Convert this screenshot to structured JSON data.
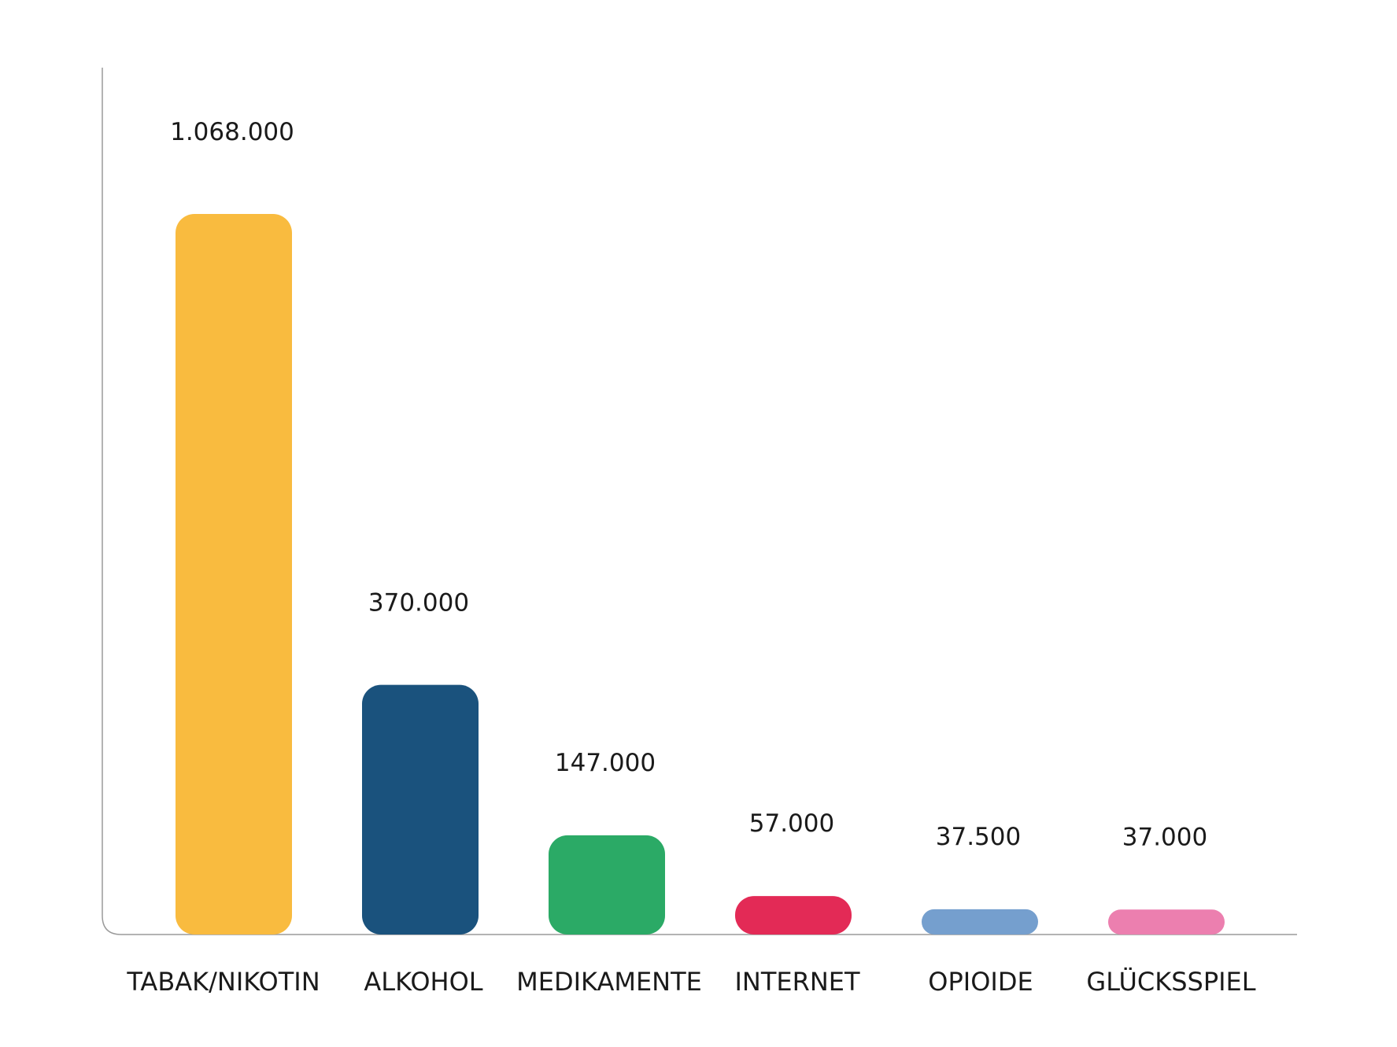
{
  "chart_data": {
    "type": "bar",
    "categories": [
      "TABAK/NIKOTIN",
      "ALKOHOL",
      "MEDIKAMENTE",
      "INTERNET",
      "OPIOIDE",
      "GLÜCKSSPIEL"
    ],
    "values": [
      1068000,
      370000,
      147000,
      57000,
      37500,
      37000
    ],
    "value_labels": [
      "1.068.000",
      "370.000",
      "147.000",
      "57.000",
      "37.500",
      "37.000"
    ],
    "colors": [
      "#F9BB3F",
      "#1A527D",
      "#2BAA66",
      "#E32A56",
      "#759FCE",
      "#EC7FAF"
    ],
    "grid": false,
    "axis_color": "#9a9a9a"
  }
}
